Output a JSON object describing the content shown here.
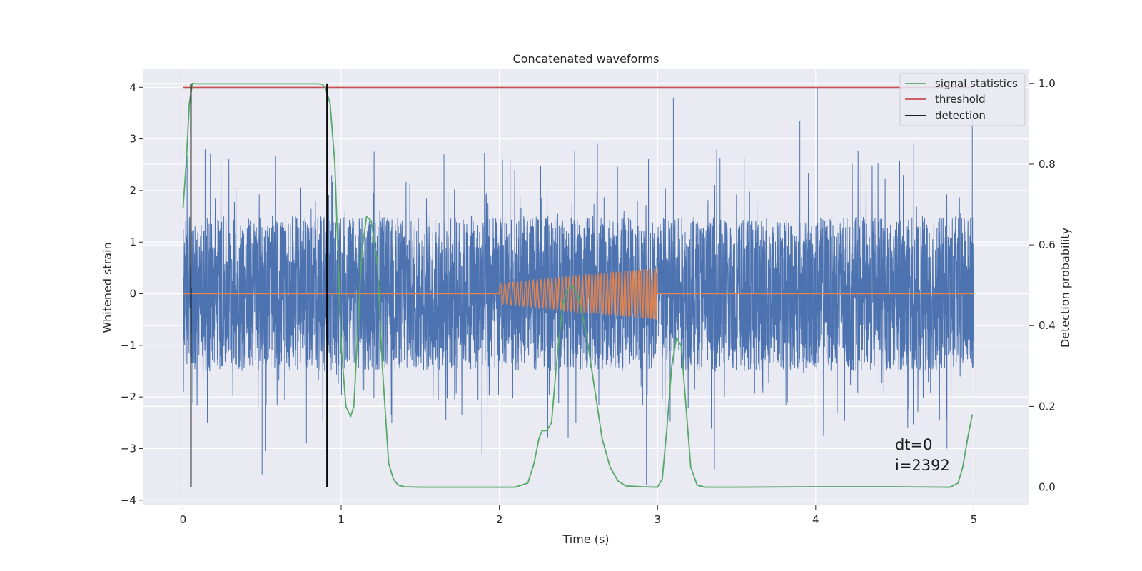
{
  "chart_data": {
    "type": "line",
    "title": "Concatenated waveforms",
    "xlabel": "Time (s)",
    "ylabel": "Whitened strain",
    "y2label": "Detection probability",
    "xlim": [
      -0.25,
      5.35
    ],
    "ylim": [
      -4.1,
      4.35
    ],
    "y2lim": [
      -0.045,
      1.035
    ],
    "xticks": [
      "0",
      "1",
      "2",
      "3",
      "4",
      "5"
    ],
    "yticks": [
      "4",
      "3",
      "2",
      "1",
      "0",
      "−1",
      "−2",
      "−3",
      "−4"
    ],
    "y2ticks": [
      "1.0",
      "0.8",
      "0.6",
      "0.4",
      "0.2",
      "0.0"
    ],
    "grid": true,
    "legend_position": "top-right",
    "colors": {
      "strain": "#4c72b0",
      "template": "#dd8452",
      "signal": "#55a868",
      "threshold": "#c44e52",
      "detection": "#000000",
      "background": "#eaeaf2",
      "grid": "#ffffff"
    },
    "series": [
      {
        "name": "signal statistics",
        "axis": "right",
        "x": [
          0.0,
          0.02,
          0.04,
          0.06,
          0.08,
          0.1,
          0.2,
          0.4,
          0.6,
          0.8,
          0.85,
          0.88,
          0.9,
          0.93,
          0.96,
          1.0,
          1.03,
          1.06,
          1.08,
          1.1,
          1.13,
          1.16,
          1.19,
          1.23,
          1.26,
          1.3,
          1.33,
          1.36,
          1.4,
          1.5,
          1.7,
          1.9,
          2.1,
          2.18,
          2.22,
          2.25,
          2.27,
          2.3,
          2.33,
          2.36,
          2.4,
          2.43,
          2.46,
          2.5,
          2.55,
          2.6,
          2.65,
          2.7,
          2.75,
          2.8,
          2.9,
          3.0,
          3.03,
          3.06,
          3.09,
          3.12,
          3.15,
          3.18,
          3.21,
          3.25,
          3.3,
          3.5,
          4.0,
          4.5,
          4.85,
          4.9,
          4.93,
          4.96,
          4.99
        ],
        "y": [
          0.69,
          0.8,
          0.95,
          1.0,
          0.999,
          0.999,
          0.999,
          0.999,
          0.999,
          0.999,
          0.999,
          0.998,
          0.99,
          0.95,
          0.8,
          0.35,
          0.2,
          0.175,
          0.2,
          0.35,
          0.58,
          0.67,
          0.66,
          0.55,
          0.3,
          0.06,
          0.02,
          0.005,
          0.001,
          0.0,
          0.0,
          0.0,
          0.0,
          0.01,
          0.06,
          0.12,
          0.14,
          0.14,
          0.16,
          0.3,
          0.45,
          0.49,
          0.5,
          0.47,
          0.38,
          0.25,
          0.12,
          0.05,
          0.015,
          0.003,
          0.001,
          0.0,
          0.02,
          0.15,
          0.3,
          0.37,
          0.35,
          0.2,
          0.05,
          0.005,
          0.0,
          0.0,
          0.001,
          0.001,
          0.0,
          0.01,
          0.05,
          0.12,
          0.18
        ]
      },
      {
        "name": "threshold",
        "axis": "right",
        "x": [
          0.0,
          4.99
        ],
        "y": [
          0.99,
          0.99
        ]
      },
      {
        "name": "detection",
        "axis": "right",
        "events": [
          0.05,
          0.91
        ],
        "y": [
          0.0,
          1.0
        ]
      }
    ],
    "unlabeled_series": [
      {
        "role": "whitened strain noise",
        "axis": "left",
        "x_range": [
          0.0,
          5.0
        ],
        "typical_band": [
          -1.5,
          1.5
        ],
        "peak_max": 4.0,
        "peak_min": -3.7,
        "peaks": [
          {
            "x": 0.01,
            "y": -1.0
          },
          {
            "x": 0.14,
            "y": 2.8
          },
          {
            "x": 0.5,
            "y": -3.5
          },
          {
            "x": 0.52,
            "y": -3.05
          },
          {
            "x": 0.78,
            "y": -2.9
          },
          {
            "x": 0.94,
            "y": 2.3
          },
          {
            "x": 1.32,
            "y": -2.5
          },
          {
            "x": 1.65,
            "y": 2.7
          },
          {
            "x": 1.89,
            "y": -3.1
          },
          {
            "x": 2.02,
            "y": 2.6
          },
          {
            "x": 2.62,
            "y": 2.9
          },
          {
            "x": 2.93,
            "y": -3.7
          },
          {
            "x": 3.1,
            "y": 3.8
          },
          {
            "x": 3.36,
            "y": -3.4
          },
          {
            "x": 3.9,
            "y": 3.35
          },
          {
            "x": 4.01,
            "y": 4.0
          },
          {
            "x": 4.62,
            "y": 2.9
          },
          {
            "x": 4.83,
            "y": -3.0
          },
          {
            "x": 4.99,
            "y": 3.4
          }
        ]
      },
      {
        "role": "injected waveform",
        "axis": "left",
        "x_range": [
          0.0,
          5.0
        ],
        "chirp_window": [
          2.0,
          3.0
        ],
        "chirp_amplitude_start": 0.2,
        "chirp_amplitude_end": 0.5,
        "chirp_cycles": 42
      }
    ],
    "annotations": [
      "dt=0",
      "i=2392"
    ]
  }
}
